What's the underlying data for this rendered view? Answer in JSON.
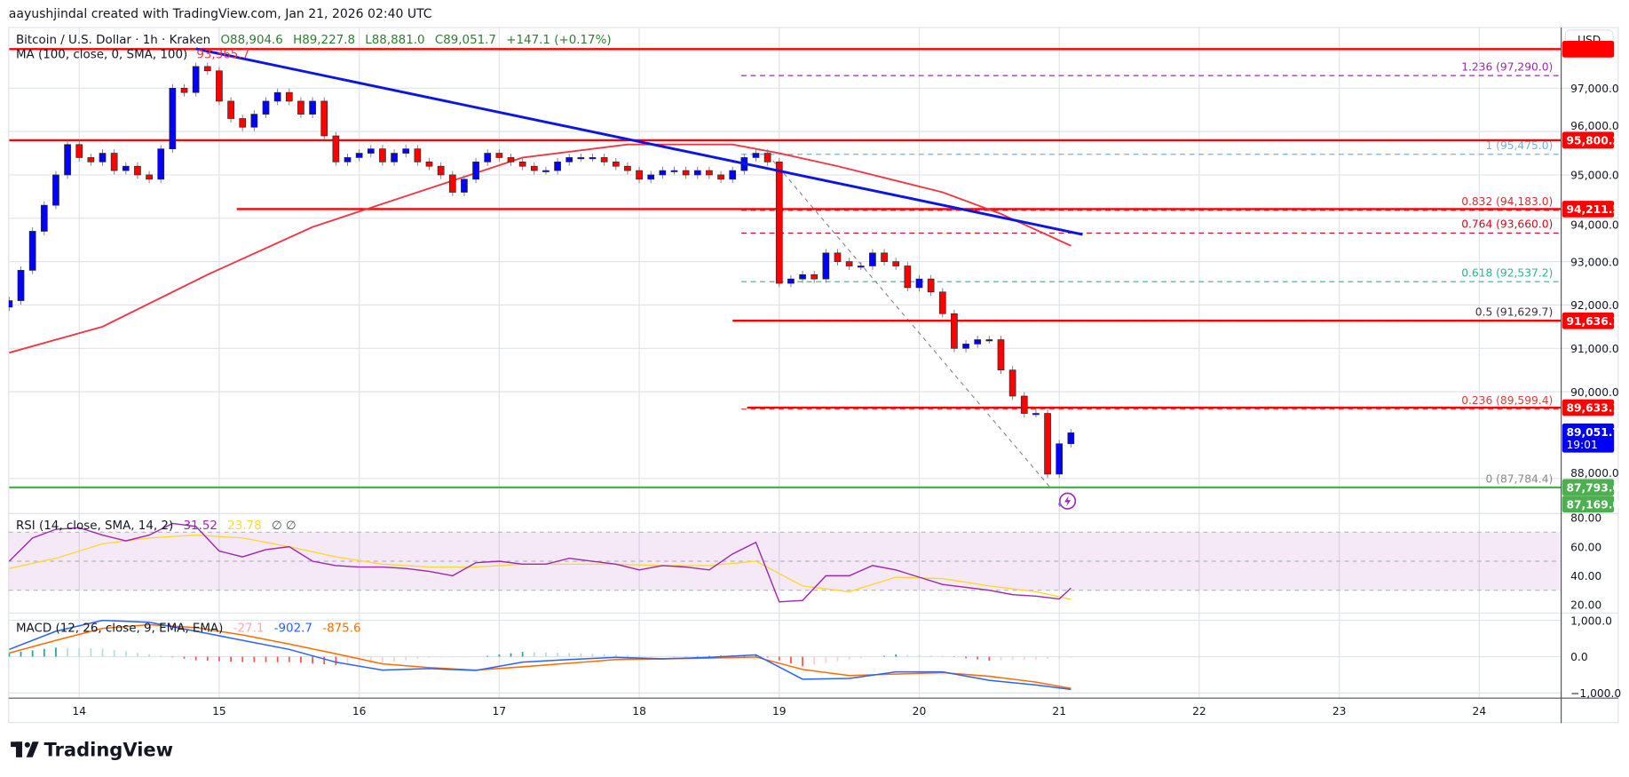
{
  "attribution": "aayushjindal created with TradingView.com, Jan 21, 2026 02:40 UTC",
  "symbol": {
    "title": "Bitcoin / U.S. Dollar · 1h · Kraken",
    "open": "O88,904.6",
    "high": "H89,227.8",
    "low": "L88,881.0",
    "close": "C89,051.7",
    "change": "+147.1 (+0.17%)"
  },
  "ma_legend": {
    "label": "MA (100, close, 0, SMA, 100)",
    "value": "93,365.7"
  },
  "currency_button": "USD",
  "colors": {
    "up_candle": "#0000ff",
    "down_candle": "#ff0000",
    "ma": "#f23645",
    "trendline": "#0b16e6",
    "support_resistance": "#ff0000",
    "support_green": "#4caf50",
    "rsi": "#9c27b0",
    "rsi_sma": "#fdd835",
    "macd": "#2962ff",
    "signal": "#ff6d00"
  },
  "chart_data": {
    "type": "candlestick",
    "price_axis": {
      "ticks": [
        "97,000.0",
        "96,000.0",
        "95,000.0",
        "94,000.0",
        "93,000.0",
        "92,000.0",
        "91,000.0",
        "90,000.0",
        "88,000.0"
      ],
      "tick_values": [
        97000,
        96000,
        95000,
        94000,
        93000,
        92000,
        91000,
        90000,
        88000
      ]
    },
    "time_axis": {
      "ticks": [
        "14",
        "15",
        "16",
        "17",
        "18",
        "19",
        "20",
        "21",
        "22",
        "23",
        "24"
      ]
    },
    "grid": true,
    "closes": {
      "start": "01-13 12:00",
      "step_hours": 2,
      "values": [
        92100,
        92800,
        93700,
        94300,
        95000,
        95700,
        95400,
        95300,
        95500,
        95100,
        95200,
        95000,
        94900,
        95600,
        97000,
        96900,
        97500,
        97400,
        96700,
        96300,
        96100,
        96400,
        96700,
        96900,
        96700,
        96400,
        96700,
        95900,
        95300,
        95400,
        95500,
        95600,
        95300,
        95500,
        95600,
        95300,
        95200,
        95000,
        94600,
        94900,
        95300,
        95500,
        95400,
        95300,
        95200,
        95100,
        95100,
        95300,
        95400,
        95400,
        95400,
        95300,
        95200,
        95100,
        94900,
        95000,
        95100,
        95100,
        95000,
        95100,
        95000,
        94900,
        95100,
        95400,
        95500,
        95300,
        92500,
        92600,
        92700,
        92600,
        93200,
        93000,
        92900,
        92900,
        93200,
        93000,
        92900,
        92400,
        92600,
        92300,
        91800,
        91000,
        91100,
        91200,
        91200,
        90500,
        89900,
        89500,
        89500,
        88100,
        88800,
        89051.7
      ]
    },
    "ma100": [
      [
        "01-13 12:00",
        90900
      ],
      [
        "01-14 04:00",
        91500
      ],
      [
        "01-14 22:00",
        92700
      ],
      [
        "01-15 16:00",
        93800
      ],
      [
        "01-16 10:00",
        94600
      ],
      [
        "01-17 04:00",
        95400
      ],
      [
        "01-17 22:00",
        95700
      ],
      [
        "01-18 16:00",
        95700
      ],
      [
        "01-19 00:00",
        95500
      ],
      [
        "01-19 10:00",
        95200
      ],
      [
        "01-20 04:00",
        94600
      ],
      [
        "01-20 14:00",
        94100
      ],
      [
        "01-21 02:00",
        93365.7
      ]
    ],
    "trendline": [
      [
        "01-14 20:00",
        97909
      ],
      [
        "01-21 04:00",
        93627
      ]
    ],
    "horizontal_levels": [
      {
        "price": 97900,
        "from": "01-13 12:00",
        "color": "#ff0000",
        "label": ""
      },
      {
        "price": 95800.2,
        "from": "01-13 12:00",
        "color": "#ff0000",
        "label": "95,800.2"
      },
      {
        "price": 94211.5,
        "from": "01-15 03:00",
        "color": "#ff0000",
        "label": "94,211.5"
      },
      {
        "price": 91636.1,
        "from": "01-18 16:00",
        "color": "#ff0000",
        "label": "91,636.1"
      },
      {
        "price": 89633.1,
        "from": "01-18 18:30",
        "color": "#ff0000",
        "label": "89,633.1"
      },
      {
        "price": 87793.6,
        "from": "01-13 12:00",
        "color": "#4caf50",
        "label": "87,793.6"
      }
    ],
    "extra_price_tag": {
      "price": 87169.0,
      "label": "87,169.0",
      "color": "#4caf50"
    },
    "last_price": {
      "price": 89051.7,
      "label": "89,051.7",
      "countdown": "19:01"
    },
    "fibonacci": {
      "from": "01-18 17:30",
      "anchor_line": [
        [
          "01-18 22:00",
          95475.0
        ],
        [
          "01-20 22:30",
          87784.4
        ]
      ],
      "levels": [
        {
          "ratio": "1.236",
          "price": 97290.0,
          "label": "1.236 (97,290.0)",
          "color": "#9c27b0"
        },
        {
          "ratio": "1",
          "price": 95475.0,
          "label": "1 (95,475.0)",
          "color": "#64b5f6"
        },
        {
          "ratio": "0.832",
          "price": 94183.0,
          "label": "0.832 (94,183.0)",
          "color": "#d32f2f"
        },
        {
          "ratio": "0.764",
          "price": 93660.0,
          "label": "0.764 (93,660.0)",
          "color": "#e0001b"
        },
        {
          "ratio": "0.618",
          "price": 92537.2,
          "label": "0.618 (92,537.2)",
          "color": "#26b58c"
        },
        {
          "ratio": "0.5",
          "price": 91629.7,
          "label": "0.5 (91,629.7)",
          "color": "#4a2c40"
        },
        {
          "ratio": "0.236",
          "price": 89599.4,
          "label": "0.236 (89,599.4)",
          "color": "#e53935"
        },
        {
          "ratio": "0",
          "price": 87784.4,
          "label": "0 (87,784.4)",
          "color": "#888888"
        }
      ]
    },
    "rsi": {
      "legend": "RSI (14, close, SMA, 14, 2)",
      "value": "31.52",
      "sma_value": "23.78",
      "extra": "∅  ∅",
      "ticks": [
        "80.00",
        "60.00",
        "40.00",
        "20.00"
      ],
      "tick_values": [
        80,
        60,
        40,
        20
      ],
      "band": [
        30,
        70
      ],
      "line": {
        "start": "01-13 12:00",
        "step_hours": 4,
        "values": [
          50,
          66,
          72,
          73,
          68,
          64,
          68,
          76,
          74,
          57,
          53,
          58,
          60,
          50,
          47,
          46,
          46,
          45,
          43,
          40,
          49,
          50,
          48,
          48,
          52,
          50,
          48,
          44,
          47,
          46,
          44,
          55,
          63,
          22,
          23,
          40,
          40,
          47,
          44,
          39,
          34,
          32,
          30,
          27,
          26,
          24
        ],
        "last": [
          "01-21 02:00",
          31.52
        ]
      },
      "sma": [
        [
          "01-13 12:00",
          45
        ],
        [
          "01-13 20:00",
          52
        ],
        [
          "01-14 04:00",
          62
        ],
        [
          "01-14 12:00",
          66
        ],
        [
          "01-14 20:00",
          68
        ],
        [
          "01-15 04:00",
          66
        ],
        [
          "01-15 12:00",
          60
        ],
        [
          "01-15 20:00",
          53
        ],
        [
          "01-16 04:00",
          48
        ],
        [
          "01-16 12:00",
          46
        ],
        [
          "01-16 20:00",
          46
        ],
        [
          "01-17 04:00",
          48
        ],
        [
          "01-17 12:00",
          48
        ],
        [
          "01-17 20:00",
          48
        ],
        [
          "01-18 04:00",
          47
        ],
        [
          "01-18 12:00",
          47
        ],
        [
          "01-18 20:00",
          50
        ],
        [
          "01-19 04:00",
          33
        ],
        [
          "01-19 12:00",
          29
        ],
        [
          "01-19 20:00",
          39
        ],
        [
          "01-20 04:00",
          38
        ],
        [
          "01-20 12:00",
          33
        ],
        [
          "01-20 20:00",
          29
        ],
        [
          "01-21 02:00",
          23.78
        ]
      ]
    },
    "macd": {
      "legend": "MACD (12, 26, close, 9, EMA, EMA)",
      "histogram_value": "-27.1",
      "macd_value": "-902.7",
      "signal_value": "-875.6",
      "ticks": [
        "1,000.0",
        "0.0",
        "−1,000.0"
      ],
      "tick_values": [
        1000,
        0,
        -1000
      ],
      "macd": [
        [
          "01-13 12:00",
          200
        ],
        [
          "01-13 20:00",
          700
        ],
        [
          "01-14 04:00",
          1000
        ],
        [
          "01-14 12:00",
          950
        ],
        [
          "01-14 20:00",
          700
        ],
        [
          "01-15 04:00",
          450
        ],
        [
          "01-15 12:00",
          200
        ],
        [
          "01-15 20:00",
          -150
        ],
        [
          "01-16 04:00",
          -370
        ],
        [
          "01-16 12:00",
          -330
        ],
        [
          "01-16 20:00",
          -380
        ],
        [
          "01-17 04:00",
          -150
        ],
        [
          "01-17 12:00",
          -80
        ],
        [
          "01-17 20:00",
          -20
        ],
        [
          "01-18 04:00",
          -60
        ],
        [
          "01-18 12:00",
          -20
        ],
        [
          "01-18 20:00",
          50
        ],
        [
          "01-19 04:00",
          -620
        ],
        [
          "01-19 12:00",
          -600
        ],
        [
          "01-19 20:00",
          -420
        ],
        [
          "01-20 04:00",
          -420
        ],
        [
          "01-20 12:00",
          -650
        ],
        [
          "01-20 20:00",
          -780
        ],
        [
          "01-21 02:00",
          -902.7
        ]
      ],
      "signal": [
        [
          "01-13 12:00",
          100
        ],
        [
          "01-13 20:00",
          450
        ],
        [
          "01-14 04:00",
          780
        ],
        [
          "01-14 12:00",
          880
        ],
        [
          "01-14 20:00",
          800
        ],
        [
          "01-15 04:00",
          600
        ],
        [
          "01-15 12:00",
          350
        ],
        [
          "01-15 20:00",
          80
        ],
        [
          "01-16 04:00",
          -200
        ],
        [
          "01-16 12:00",
          -300
        ],
        [
          "01-16 20:00",
          -370
        ],
        [
          "01-17 04:00",
          -280
        ],
        [
          "01-17 12:00",
          -180
        ],
        [
          "01-17 20:00",
          -80
        ],
        [
          "01-18 04:00",
          -60
        ],
        [
          "01-18 12:00",
          -40
        ],
        [
          "01-18 20:00",
          -10
        ],
        [
          "01-19 04:00",
          -350
        ],
        [
          "01-19 12:00",
          -520
        ],
        [
          "01-19 20:00",
          -480
        ],
        [
          "01-20 04:00",
          -440
        ],
        [
          "01-20 12:00",
          -540
        ],
        [
          "01-20 20:00",
          -700
        ],
        [
          "01-21 02:00",
          -875.6
        ]
      ]
    }
  },
  "logo": {
    "text": "TradingView",
    "icon": "tradingview-logo-icon"
  },
  "icons": {
    "alert": "lightning-alert-icon"
  }
}
